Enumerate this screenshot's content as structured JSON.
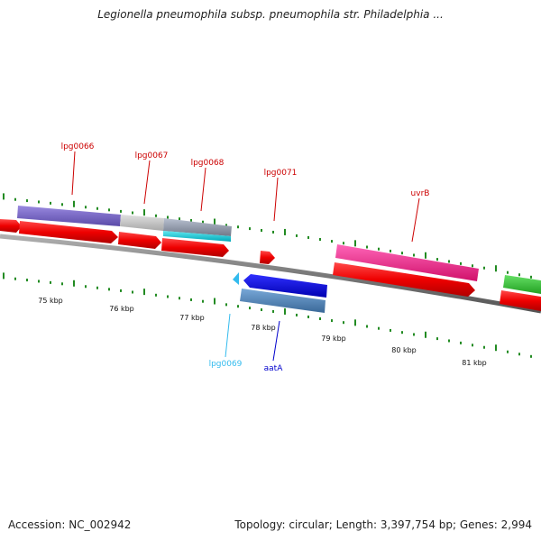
{
  "title": "Legionella pneumophila subsp. pneumophila str. Philadelphia ...",
  "footer": {
    "accession": "Accession: NC_002942",
    "stats": "Topology: circular; Length: 3,397,754 bp; Genes: 2,994"
  },
  "genes": [
    {
      "id": "lpg0066",
      "label": "lpg0066",
      "color": "#cc0000"
    },
    {
      "id": "lpg0067",
      "label": "lpg0067",
      "color": "#cc0000"
    },
    {
      "id": "lpg0068",
      "label": "lpg0068",
      "color": "#cc0000"
    },
    {
      "id": "lpg0071",
      "label": "lpg0071",
      "color": "#cc0000"
    },
    {
      "id": "uvrB",
      "label": "uvrB",
      "color": "#cc0000"
    },
    {
      "id": "lpg0069",
      "label": "lpg0069",
      "color": "#33bbee"
    },
    {
      "id": "aatA",
      "label": "aatA",
      "color": "#0000cc"
    }
  ],
  "ruler": {
    "labels": [
      "75 kbp",
      "76 kbp",
      "77 kbp",
      "78 kbp",
      "79 kbp",
      "80 kbp",
      "81 kbp"
    ]
  },
  "colors": {
    "cds": "#ff0000",
    "backbone": "#888888",
    "ticks": "#228b22",
    "cog_purple": "#7b68c8",
    "cog_grey": "#c8c8c8",
    "cog_cyan": "#00c8d8",
    "cog_magenta": "#ff1493",
    "cog_green": "#33cc33",
    "cog_blue": "#0000ee",
    "cog_steel": "#4682b4"
  }
}
